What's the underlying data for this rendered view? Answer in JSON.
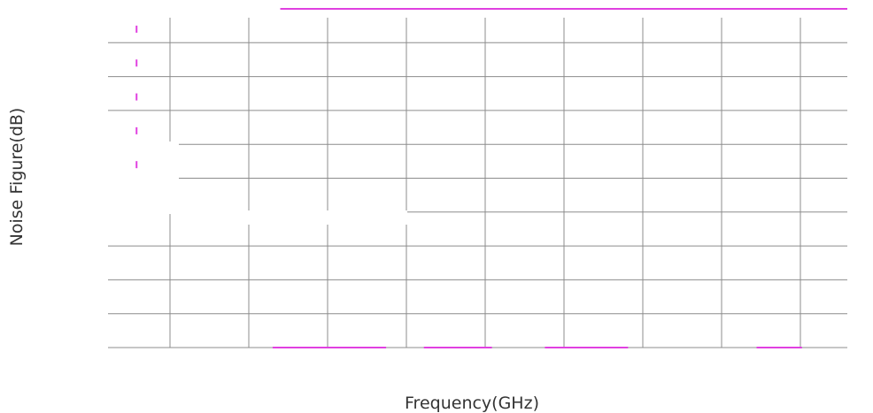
{
  "chart_data": {
    "type": "line",
    "xlabel": "Frequency(GHz)",
    "ylabel": "Noise Figure(dB)",
    "grid": true,
    "title": "",
    "x_divisions": 9,
    "y_divisions": 10,
    "tick_labels_visible": false,
    "series": [
      {
        "color": "#e040e0",
        "segments": [
          {
            "from": [
              2.5,
              10
            ],
            "to": [
              10.0,
              10
            ]
          },
          {
            "from": [
              2.4,
              0
            ],
            "to": [
              3.9,
              0
            ]
          },
          {
            "from": [
              4.4,
              0
            ],
            "to": [
              5.3,
              0
            ]
          },
          {
            "from": [
              6.0,
              0
            ],
            "to": [
              7.1,
              0
            ]
          },
          {
            "from": [
              8.8,
              0
            ],
            "to": [
              9.4,
              0
            ]
          }
        ],
        "markers": [
          {
            "x": 0.6,
            "y": 9.4
          },
          {
            "x": 0.6,
            "y": 8.4
          },
          {
            "x": 0.6,
            "y": 7.4
          },
          {
            "x": 0.6,
            "y": 6.4
          },
          {
            "x": 0.6,
            "y": 5.4
          }
        ]
      }
    ],
    "xlim": [
      0,
      10
    ],
    "ylim": [
      0,
      10
    ]
  },
  "colors": {
    "grid": "#8c8c8c",
    "series": "#e040e0"
  }
}
